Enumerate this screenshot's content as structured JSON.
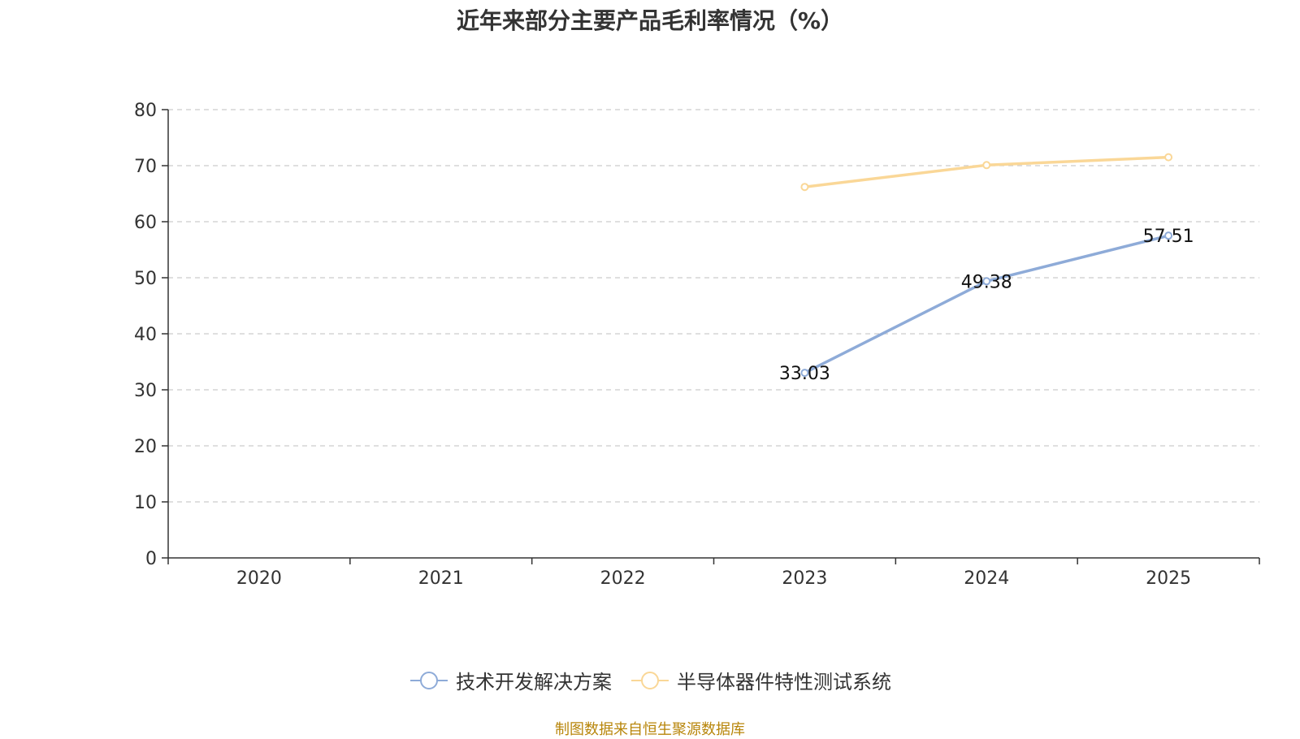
{
  "chart_data": {
    "type": "line",
    "title": "近年来部分主要产品毛利率情况（%）",
    "categories": [
      "2020",
      "2021",
      "2022",
      "2023",
      "2024",
      "2025"
    ],
    "ylim": [
      0,
      80
    ],
    "yticks": [
      0,
      10,
      20,
      30,
      40,
      50,
      60,
      70,
      80
    ],
    "grid": true,
    "legend_position": "bottom",
    "series": [
      {
        "name": "技术开发解决方案",
        "color": "#8eabd8",
        "values": [
          null,
          null,
          null,
          33.03,
          49.38,
          57.51
        ],
        "labels": [
          null,
          null,
          null,
          "33.03",
          "49.38",
          "57.51"
        ]
      },
      {
        "name": "半导体器件特性测试系统",
        "color": "#fad797",
        "values": [
          null,
          null,
          null,
          66.2,
          70.1,
          71.5
        ],
        "labels": [
          null,
          null,
          null,
          null,
          null,
          null
        ]
      }
    ]
  },
  "source": "制图数据来自恒生聚源数据库"
}
